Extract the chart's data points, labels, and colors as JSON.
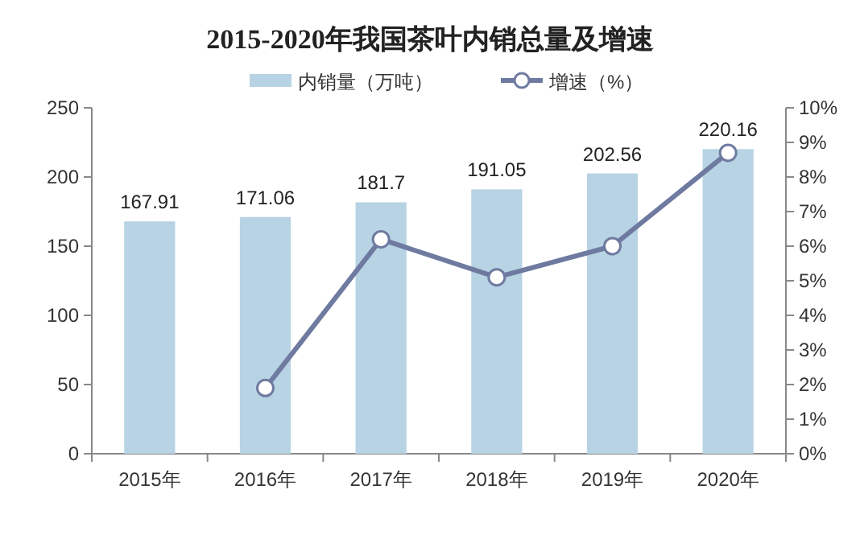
{
  "chart_data": {
    "type": "bar",
    "title": "2015-2020年我国茶叶内销总量及增速",
    "categories": [
      "2015年",
      "2016年",
      "2017年",
      "2018年",
      "2019年",
      "2020年"
    ],
    "series": [
      {
        "name": "内销量（万吨）",
        "color": "#b7d3e4",
        "values": [
          167.91,
          171.06,
          181.7,
          191.05,
          202.56,
          220.16
        ],
        "value_labels": [
          "167.91",
          "171.06",
          "181.7",
          "191.05",
          "202.56",
          "220.16"
        ]
      },
      {
        "name": "增速（%）",
        "type": "line",
        "axis": "y2",
        "color": "#6f7aa0",
        "marker": "circle",
        "values": [
          null,
          1.9,
          6.2,
          5.1,
          6.0,
          8.7
        ]
      }
    ],
    "ylim": [
      0,
      250
    ],
    "yticks": [
      0,
      50,
      100,
      150,
      200,
      250
    ],
    "y2lim": [
      0,
      10
    ],
    "y2ticks": [
      {
        "value": 0,
        "label": "0%"
      },
      {
        "value": 1,
        "label": "1%"
      },
      {
        "value": 2,
        "label": "2%"
      },
      {
        "value": 3,
        "label": "3%"
      },
      {
        "value": 4,
        "label": "4%"
      },
      {
        "value": 5,
        "label": "5%"
      },
      {
        "value": 6,
        "label": "6%"
      },
      {
        "value": 7,
        "label": "7%"
      },
      {
        "value": 8,
        "label": "8%"
      },
      {
        "value": 9,
        "label": "9%"
      },
      {
        "value": 10,
        "label": "10%"
      }
    ],
    "legend": "top",
    "grid": false
  }
}
